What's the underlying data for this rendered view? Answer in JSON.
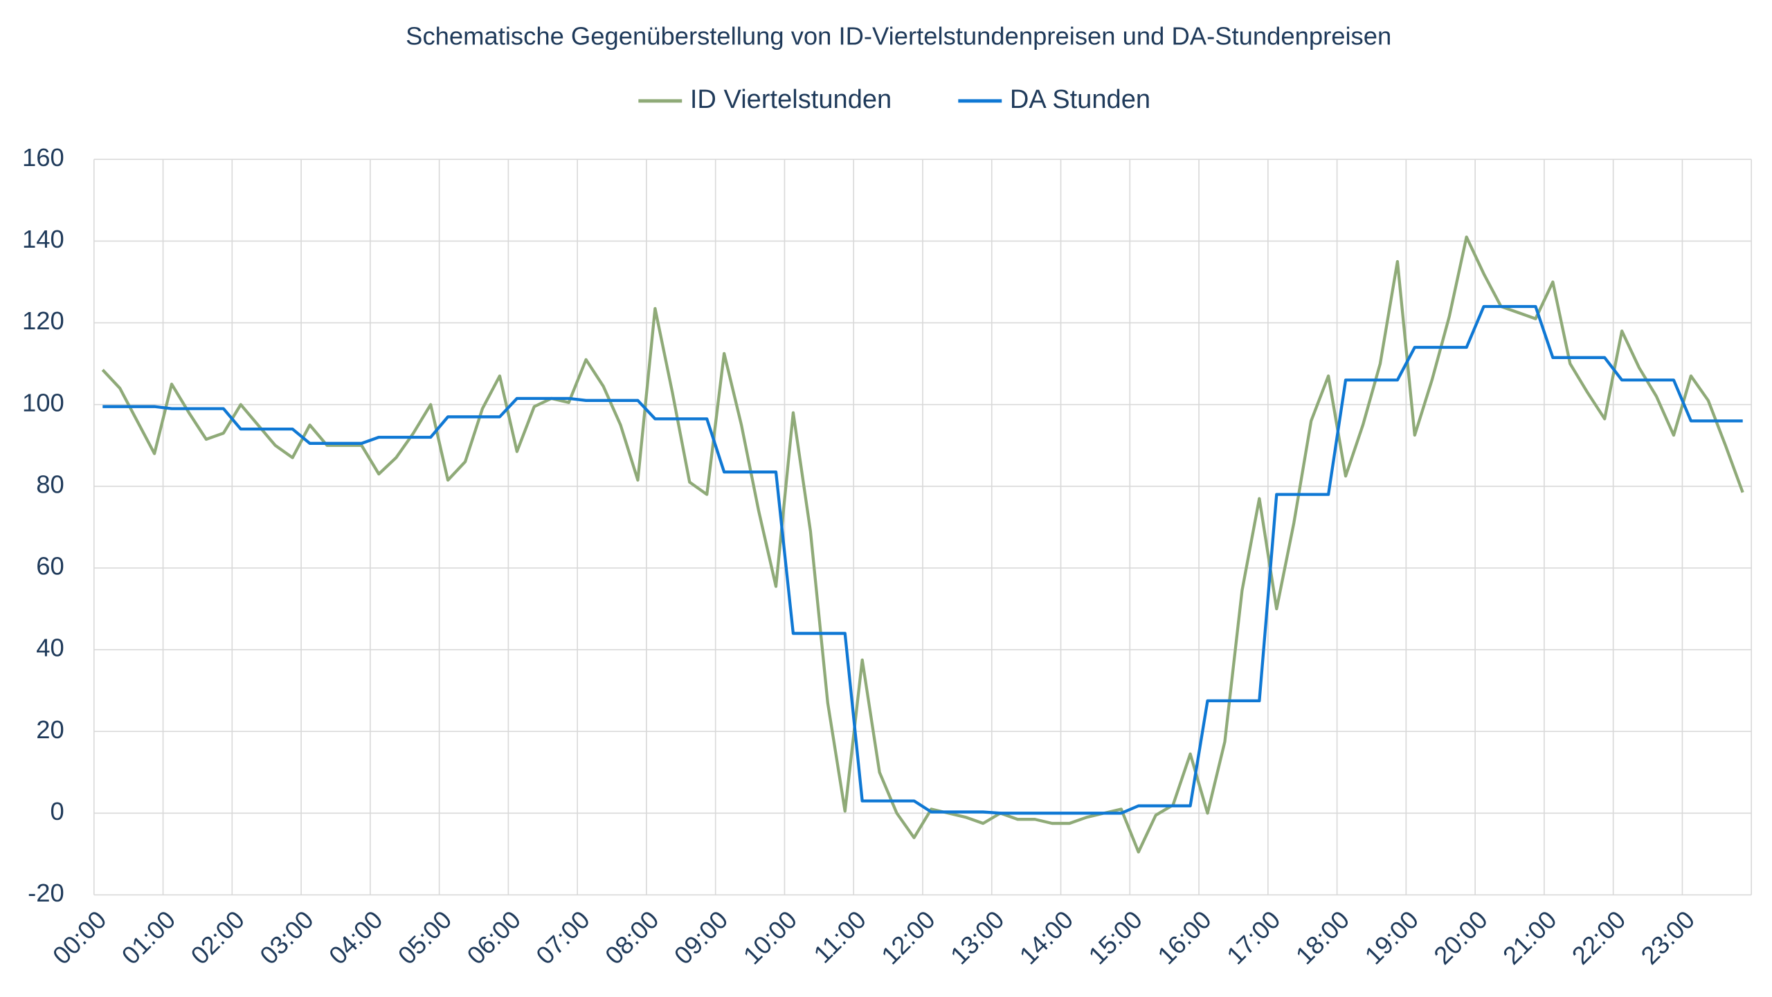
{
  "chart_data": {
    "type": "line",
    "title": "Schematische Gegenüberstellung von ID-Viertelstundenpreisen und DA-Stundenpreisen",
    "categories": [
      "00:00",
      null,
      null,
      null,
      "01:00",
      null,
      null,
      null,
      "02:00",
      null,
      null,
      null,
      "03:00",
      null,
      null,
      null,
      "04:00",
      null,
      null,
      null,
      "05:00",
      null,
      null,
      null,
      "06:00",
      null,
      null,
      null,
      "07:00",
      null,
      null,
      null,
      "08:00",
      null,
      null,
      null,
      "09:00",
      null,
      null,
      null,
      "10:00",
      null,
      null,
      null,
      "11:00",
      null,
      null,
      null,
      "12:00",
      null,
      null,
      null,
      "13:00",
      null,
      null,
      null,
      "14:00",
      null,
      null,
      null,
      "15:00",
      null,
      null,
      null,
      "16:00",
      null,
      null,
      null,
      "17:00",
      null,
      null,
      null,
      "18:00",
      null,
      null,
      null,
      "19:00",
      null,
      null,
      null,
      "20:00",
      null,
      null,
      null,
      "21:00",
      null,
      null,
      null,
      "22:00",
      null,
      null,
      null,
      "23:00",
      null,
      null,
      null
    ],
    "series": [
      {
        "name": "ID Viertelstunden",
        "color": "#8faa78",
        "values": [
          108.5,
          104,
          96,
          88,
          105,
          98,
          91.5,
          93,
          100,
          95,
          90,
          87,
          95,
          90,
          90,
          90,
          83,
          87,
          93,
          100,
          81.5,
          86,
          99,
          107,
          88.5,
          99.5,
          101.5,
          100.5,
          111,
          104.5,
          95,
          81.5,
          123.5,
          103,
          81,
          78,
          112.5,
          95,
          74,
          55.5,
          98,
          69,
          27,
          0.5,
          37.5,
          10,
          0,
          -6,
          1,
          0,
          -1,
          -2.5,
          0,
          -1.5,
          -1.5,
          -2.5,
          -2.5,
          -1,
          0,
          1,
          -9.5,
          -0.5,
          2,
          14.5,
          0,
          17.5,
          54.5,
          77,
          50,
          71,
          96,
          107,
          82.5,
          95,
          110,
          135,
          92.5,
          106,
          121.5,
          141,
          132,
          124,
          122.5,
          121,
          130,
          110,
          103,
          96.5,
          118,
          109,
          102,
          92.5,
          107,
          101,
          90,
          78.5
        ]
      },
      {
        "name": "DA Stunden",
        "color": "#0f78d4",
        "values": [
          99.5,
          99.5,
          99.5,
          99.5,
          99,
          99,
          99,
          99,
          94,
          94,
          94,
          94,
          90.5,
          90.5,
          90.5,
          90.5,
          92,
          92,
          92,
          92,
          97,
          97,
          97,
          97,
          101.5,
          101.5,
          101.5,
          101.5,
          101,
          101,
          101,
          101,
          96.5,
          96.5,
          96.5,
          96.5,
          83.5,
          83.5,
          83.5,
          83.5,
          44,
          44,
          44,
          44,
          3,
          3,
          3,
          3,
          0.3,
          0.3,
          0.3,
          0.3,
          0,
          0,
          0,
          0,
          0,
          0,
          0,
          0,
          1.8,
          1.8,
          1.8,
          1.8,
          27.5,
          27.5,
          27.5,
          27.5,
          78,
          78,
          78,
          78,
          106,
          106,
          106,
          106,
          114,
          114,
          114,
          114,
          124,
          124,
          124,
          124,
          111.5,
          111.5,
          111.5,
          111.5,
          106,
          106,
          106,
          106,
          96,
          96,
          96,
          96
        ]
      }
    ],
    "ylim": [
      -20,
      160
    ],
    "yticks": [
      -20,
      0,
      20,
      40,
      60,
      80,
      100,
      120,
      140,
      160
    ],
    "grid": true,
    "legend": "top"
  }
}
